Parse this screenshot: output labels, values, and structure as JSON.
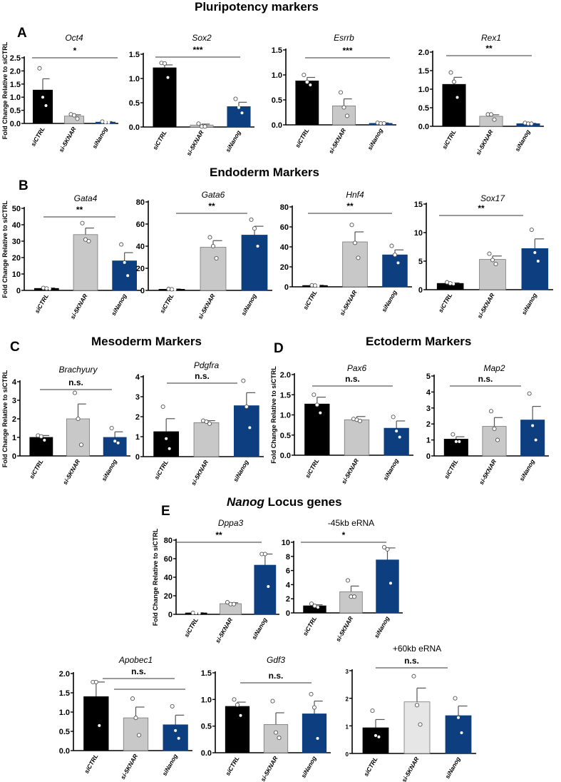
{
  "sections": {
    "pluripotency": "Pluripotency markers",
    "endoderm": "Endoderm Markers",
    "mesoderm": "Mesoderm Markers",
    "ectoderm": "Ectoderm Markers",
    "nanog_italic": "Nanog",
    "nanog_rest": " Locus genes"
  },
  "panel_letters": [
    "A",
    "B",
    "C",
    "D",
    "E"
  ],
  "colors": {
    "siCTRL": "#000000",
    "si-5KNAR": "#c8c8c8",
    "siNanog": "#0d3f80",
    "light": "#e6e6e6"
  },
  "chart_data": [
    {
      "type": "bar",
      "title": "Oct4",
      "italic": true,
      "ylabel": "Fold Change Relative to siCTRL",
      "categories": [
        "siCTRL",
        "si-5KNAR",
        "siNanog"
      ],
      "values": [
        1.27,
        0.28,
        0.05
      ],
      "errors": [
        0.43,
        0.05,
        0.02
      ],
      "points": [
        [
          2.1,
          1.0,
          0.68
        ],
        [
          0.35,
          0.31,
          0.18
        ],
        [
          0.07,
          0.04,
          0.04
        ]
      ],
      "ylim": [
        0,
        2.5
      ],
      "yticks": [
        "0.0",
        "0.5",
        "1.0",
        "1.5",
        "2.0",
        "2.5"
      ],
      "significance": "*"
    },
    {
      "type": "bar",
      "title": "Sox2",
      "italic": true,
      "ylabel": "",
      "categories": [
        "siCTRL",
        "si-5KNAR",
        "siNanog"
      ],
      "values": [
        1.22,
        0.04,
        0.42
      ],
      "errors": [
        0.06,
        0.02,
        0.09
      ],
      "points": [
        [
          1.32,
          1.31,
          1.02
        ],
        [
          0.07,
          0.01,
          0.01
        ],
        [
          0.58,
          0.4,
          0.29
        ]
      ],
      "ylim": [
        0,
        1.5
      ],
      "yticks": [
        "0.0",
        "0.5",
        "1.0",
        "1.5"
      ],
      "significance": "***"
    },
    {
      "type": "bar",
      "title": "Esrrb",
      "italic": true,
      "ylabel": "",
      "categories": [
        "siCTRL",
        "si-5KNAR",
        "siNanog"
      ],
      "values": [
        0.88,
        0.38,
        0.03
      ],
      "errors": [
        0.07,
        0.14,
        0.01
      ],
      "points": [
        [
          1.0,
          0.86,
          0.8
        ],
        [
          0.65,
          0.35,
          0.18
        ],
        [
          0.04,
          0.03,
          0.03
        ]
      ],
      "ylim": [
        0,
        1.5
      ],
      "yticks": [
        "0.0",
        "0.5",
        "1.0",
        "1.5"
      ],
      "significance": "***"
    },
    {
      "type": "bar",
      "title": "Rex1",
      "italic": true,
      "ylabel": "",
      "categories": [
        "siCTRL",
        "si-5KNAR",
        "siNanog"
      ],
      "values": [
        1.13,
        0.27,
        0.07
      ],
      "errors": [
        0.19,
        0.04,
        0.01
      ],
      "points": [
        [
          1.45,
          1.2,
          0.78
        ],
        [
          0.32,
          0.32,
          0.18
        ],
        [
          0.09,
          0.07,
          0.07
        ]
      ],
      "ylim": [
        0,
        2.0
      ],
      "yticks": [
        "0.0",
        "0.5",
        "1.0",
        "1.5",
        "2.0"
      ],
      "significance": "**"
    },
    {
      "type": "bar",
      "title": "Gata4",
      "italic": true,
      "ylabel": "Fold Change Relative to siCTRL",
      "categories": [
        "siCTRL",
        "si-5KNAR",
        "siNanog"
      ],
      "values": [
        1.2,
        34,
        18
      ],
      "errors": [
        0.3,
        4,
        5
      ],
      "points": [
        [
          1.5,
          1.2,
          1.0
        ],
        [
          41,
          31,
          30
        ],
        [
          28,
          17,
          9
        ]
      ],
      "ylim": [
        0,
        50
      ],
      "yticks": [
        "0",
        "10",
        "20",
        "30",
        "40",
        "50"
      ],
      "significance": "**"
    },
    {
      "type": "bar",
      "title": "Gata6",
      "italic": true,
      "ylabel": "",
      "categories": [
        "siCTRL",
        "si-5KNAR",
        "siNanog"
      ],
      "values": [
        1.0,
        39,
        50
      ],
      "errors": [
        0.3,
        6,
        8
      ],
      "points": [
        [
          1.3,
          1.0,
          0.8
        ],
        [
          48,
          40,
          29
        ],
        [
          64,
          56,
          40
        ]
      ],
      "ylim": [
        0,
        80
      ],
      "yticks": [
        "0",
        "20",
        "40",
        "60",
        "80"
      ],
      "significance": "**"
    },
    {
      "type": "bar",
      "title": "Hnf4",
      "italic": true,
      "ylabel": "",
      "categories": [
        "siCTRL",
        "si-5KNAR",
        "siNanog"
      ],
      "values": [
        1.3,
        45,
        32
      ],
      "errors": [
        0.3,
        10,
        5
      ],
      "points": [
        [
          1.6,
          1.3,
          1.0
        ],
        [
          62,
          44,
          29
        ],
        [
          41,
          32,
          24
        ]
      ],
      "ylim": [
        0,
        80
      ],
      "yticks": [
        "0",
        "20",
        "40",
        "60",
        "80"
      ],
      "significance": "**"
    },
    {
      "type": "bar",
      "title": "Sox17",
      "italic": true,
      "ylabel": "",
      "categories": [
        "siCTRL",
        "si-5KNAR",
        "siNanog"
      ],
      "values": [
        1.1,
        5.3,
        7.2
      ],
      "errors": [
        0.1,
        0.6,
        1.7
      ],
      "points": [
        [
          1.3,
          1.1,
          1.0
        ],
        [
          6.3,
          5.2,
          4.5
        ],
        [
          10.5,
          6.5,
          5.0
        ]
      ],
      "ylim": [
        0,
        15
      ],
      "yticks": [
        "0",
        "5",
        "10",
        "15"
      ],
      "significance": "**"
    },
    {
      "type": "bar",
      "title": "Brachyury",
      "italic": true,
      "ylabel": "Fold Change Relative to siCTRL",
      "categories": [
        "siCTRL",
        "si-5KNAR",
        "siNanog"
      ],
      "values": [
        1.0,
        2.0,
        1.0
      ],
      "errors": [
        0.1,
        0.8,
        0.3
      ],
      "points": [
        [
          1.1,
          1.05,
          0.85
        ],
        [
          3.4,
          2.0,
          0.6
        ],
        [
          1.5,
          0.8,
          0.7
        ]
      ],
      "ylim": [
        0,
        4
      ],
      "yticks": [
        "0",
        "1",
        "2",
        "3",
        "4"
      ],
      "significance": "n.s."
    },
    {
      "type": "bar",
      "title": "Pdgfra",
      "italic": true,
      "ylabel": "",
      "categories": [
        "siCTRL",
        "si-5KNAR",
        "siNanog"
      ],
      "values": [
        1.25,
        1.7,
        2.55
      ],
      "errors": [
        0.65,
        0.1,
        0.65
      ],
      "points": [
        [
          2.5,
          0.9,
          0.4
        ],
        [
          1.8,
          1.75,
          1.65
        ],
        [
          3.8,
          2.5,
          1.45
        ]
      ],
      "ylim": [
        0,
        4
      ],
      "yticks": [
        "0",
        "1",
        "2",
        "3",
        "4"
      ],
      "significance": "n.s."
    },
    {
      "type": "bar",
      "title": "Pax6",
      "italic": true,
      "ylabel": "Fold Change Relative to siCTRL",
      "categories": [
        "siCTRL",
        "si-5KNAR",
        "siNanog"
      ],
      "values": [
        1.27,
        0.88,
        0.67
      ],
      "errors": [
        0.17,
        0.08,
        0.18
      ],
      "points": [
        [
          1.5,
          1.25,
          1.05
        ],
        [
          0.9,
          0.88,
          0.85
        ],
        [
          0.95,
          0.6,
          0.45
        ]
      ],
      "ylim": [
        0,
        2.0
      ],
      "yticks": [
        "0.0",
        "0.5",
        "1.0",
        "1.5",
        "2.0"
      ],
      "significance": "n.s."
    },
    {
      "type": "bar",
      "title": "Map2",
      "italic": true,
      "ylabel": "",
      "categories": [
        "siCTRL",
        "si-5KNAR",
        "siNanog"
      ],
      "values": [
        1.05,
        1.85,
        2.25
      ],
      "errors": [
        0.15,
        0.55,
        0.85
      ],
      "points": [
        [
          1.35,
          0.9,
          0.9
        ],
        [
          2.8,
          1.7,
          1.0
        ],
        [
          3.9,
          1.9,
          1.0
        ]
      ],
      "ylim": [
        0,
        5
      ],
      "yticks": [
        "0",
        "1",
        "2",
        "3",
        "4",
        "5"
      ],
      "significance": "n.s."
    },
    {
      "type": "bar",
      "title": "Dppa3",
      "italic": true,
      "ylabel": "Fold Change Relative to siCTRL",
      "categories": [
        "siCTRL",
        "si-5KNAR",
        "siNanog"
      ],
      "values": [
        1.5,
        11.5,
        53
      ],
      "errors": [
        0.2,
        1,
        12
      ],
      "points": [
        [
          1.6,
          1.4,
          1.3
        ],
        [
          13,
          11,
          11
        ],
        [
          65,
          65,
          30
        ]
      ],
      "ylim": [
        0,
        80
      ],
      "yticks": [
        "0",
        "20",
        "40",
        "60",
        "80"
      ],
      "significance": "**"
    },
    {
      "type": "bar",
      "title": "-45kb eRNA",
      "italic": false,
      "ylabel": "",
      "categories": [
        "siCTRL",
        "si-5KNAR",
        "siNanog"
      ],
      "values": [
        1.0,
        3.0,
        7.5
      ],
      "errors": [
        0.15,
        0.8,
        1.7
      ],
      "points": [
        [
          1.3,
          1.0,
          0.8
        ],
        [
          4.6,
          2.3,
          2.3
        ],
        [
          9.3,
          9.0,
          4.2
        ]
      ],
      "ylim": [
        0,
        10
      ],
      "yticks": [
        "0",
        "2",
        "4",
        "6",
        "8",
        "10"
      ],
      "significance": "*"
    },
    {
      "type": "bar",
      "title": "Apobec1",
      "italic": true,
      "ylabel": "",
      "categories": [
        "siCTRL",
        "si-5KNAR",
        "siNanog"
      ],
      "values": [
        1.4,
        0.85,
        0.67
      ],
      "errors": [
        0.38,
        0.28,
        0.25
      ],
      "points": [
        [
          1.78,
          1.78,
          0.65
        ],
        [
          1.35,
          0.85,
          0.4
        ],
        [
          1.15,
          0.52,
          0.32
        ]
      ],
      "ylim": [
        0,
        2.0
      ],
      "yticks": [
        "0.0",
        "0.5",
        "1.0",
        "1.5",
        "2.0"
      ],
      "significance": "n.s."
    },
    {
      "type": "bar",
      "title": "Gdf3",
      "italic": true,
      "ylabel": "",
      "categories": [
        "siCTRL",
        "si-5KNAR",
        "siNanog"
      ],
      "values": [
        0.87,
        0.53,
        0.73
      ],
      "errors": [
        0.08,
        0.22,
        0.24
      ],
      "points": [
        [
          1.0,
          0.9,
          0.7
        ],
        [
          0.97,
          0.38,
          0.28
        ],
        [
          1.1,
          0.85,
          0.27
        ]
      ],
      "ylim": [
        0,
        1.5
      ],
      "yticks": [
        "0.0",
        "0.5",
        "1.0",
        "1.5"
      ],
      "significance": "n.s."
    },
    {
      "type": "bar",
      "title": "+60kb eRNA",
      "italic": false,
      "ylabel": "",
      "categories": [
        "siCTRL",
        "si-5KNAR",
        "siNanog"
      ],
      "values": [
        0.93,
        1.87,
        1.37
      ],
      "errors": [
        0.3,
        0.5,
        0.35
      ],
      "points": [
        [
          1.55,
          0.65,
          0.6
        ],
        [
          2.8,
          1.75,
          1.05
        ],
        [
          2.0,
          1.3,
          0.75
        ]
      ],
      "ylim": [
        0,
        3
      ],
      "yticks": [
        "0",
        "1",
        "2",
        "3"
      ],
      "significance": "n.s."
    }
  ]
}
